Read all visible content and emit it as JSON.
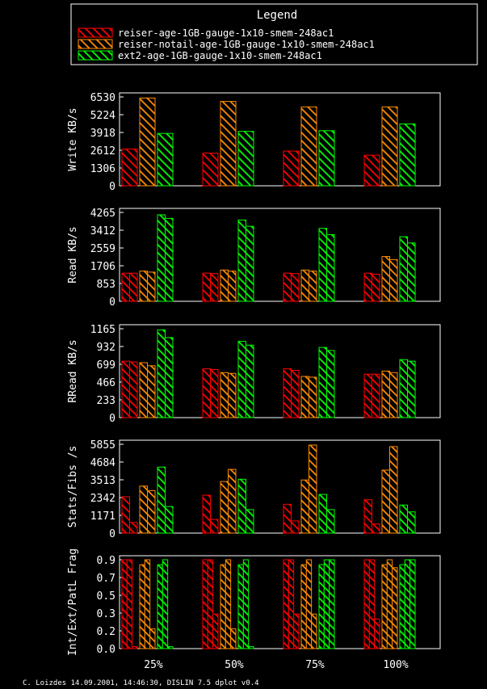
{
  "legend": {
    "title": "Legend",
    "entries": [
      {
        "label": "reiser-age-1GB-gauge-1x10-smem-248ac1",
        "color": "#ff0000"
      },
      {
        "label": "reiser-notail-age-1GB-gauge-1x10-smem-248ac1",
        "color": "#ff8c00"
      },
      {
        "label": "ext2-age-1GB-gauge-1x10-smem-248ac1",
        "color": "#00ff00"
      }
    ]
  },
  "footer": "C. Loizdes 14.09.2001, 14:46:30, DISLIN 7.5 dplot v0.4",
  "chart_data": [
    {
      "type": "bar",
      "ylabel": "Write KB/s",
      "ylim": [
        0,
        6530
      ],
      "yticks": [
        "0",
        "1306",
        "2612",
        "3918",
        "5224",
        "6530"
      ],
      "categories": [
        "25%",
        "50%",
        "75%",
        "100%"
      ],
      "series": [
        {
          "name": "reiser-age-1GB-gauge-1x10-smem-248ac1",
          "values": [
            [
              2700
            ],
            [
              2400
            ],
            [
              2550
            ],
            [
              2250
            ]
          ]
        },
        {
          "name": "reiser-notail-age-1GB-gauge-1x10-smem-248ac1",
          "values": [
            [
              6450
            ],
            [
              6200
            ],
            [
              5800
            ],
            [
              5800
            ]
          ]
        },
        {
          "name": "ext2-age-1GB-gauge-1x10-smem-248ac1",
          "values": [
            [
              3850
            ],
            [
              4000
            ],
            [
              4050
            ],
            [
              4550
            ]
          ]
        }
      ]
    },
    {
      "type": "bar",
      "ylabel": "Read KB/s",
      "ylim": [
        0,
        4265
      ],
      "yticks": [
        "0",
        "853",
        "1706",
        "2559",
        "3412",
        "4265"
      ],
      "categories": [
        "25%",
        "50%",
        "75%",
        "100%"
      ],
      "series": [
        {
          "name": "reiser-age-1GB-gauge-1x10-smem-248ac1",
          "values": [
            [
              1350,
              1350
            ],
            [
              1350,
              1330
            ],
            [
              1350,
              1330
            ],
            [
              1350,
              1300
            ]
          ]
        },
        {
          "name": "reiser-notail-age-1GB-gauge-1x10-smem-248ac1",
          "values": [
            [
              1450,
              1400
            ],
            [
              1500,
              1450
            ],
            [
              1500,
              1450
            ],
            [
              2150,
              2000
            ]
          ]
        },
        {
          "name": "ext2-age-1GB-gauge-1x10-smem-248ac1",
          "values": [
            [
              4150,
              3980
            ],
            [
              3900,
              3600
            ],
            [
              3500,
              3200
            ],
            [
              3100,
              2800
            ]
          ]
        }
      ]
    },
    {
      "type": "bar",
      "ylabel": "RRead KB/s",
      "ylim": [
        0,
        1165
      ],
      "yticks": [
        "0",
        "233",
        "466",
        "699",
        "932",
        "1165"
      ],
      "categories": [
        "25%",
        "50%",
        "75%",
        "100%"
      ],
      "series": [
        {
          "name": "reiser-age-1GB-gauge-1x10-smem-248ac1",
          "values": [
            [
              740,
              730
            ],
            [
              640,
              630
            ],
            [
              640,
              620
            ],
            [
              570,
              570
            ]
          ]
        },
        {
          "name": "reiser-notail-age-1GB-gauge-1x10-smem-248ac1",
          "values": [
            [
              720,
              680
            ],
            [
              590,
              580
            ],
            [
              540,
              530
            ],
            [
              610,
              590
            ]
          ]
        },
        {
          "name": "ext2-age-1GB-gauge-1x10-smem-248ac1",
          "values": [
            [
              1150,
              1050
            ],
            [
              1000,
              950
            ],
            [
              920,
              880
            ],
            [
              760,
              740
            ]
          ]
        }
      ]
    },
    {
      "type": "bar",
      "ylabel": "Stats/Fibs /s",
      "ylim": [
        0,
        5855
      ],
      "yticks": [
        "0",
        "1171",
        "2342",
        "3513",
        "4684",
        "5855"
      ],
      "categories": [
        "25%",
        "50%",
        "75%",
        "100%"
      ],
      "series": [
        {
          "name": "reiser-age-1GB-gauge-1x10-smem-248ac1",
          "values": [
            [
              2400,
              700
            ],
            [
              2500,
              900
            ],
            [
              1900,
              800
            ],
            [
              2200,
              600
            ]
          ]
        },
        {
          "name": "reiser-notail-age-1GB-gauge-1x10-smem-248ac1",
          "values": [
            [
              3100,
              2800
            ],
            [
              3400,
              4200
            ],
            [
              3500,
              5800
            ],
            [
              4150,
              5700
            ]
          ]
        },
        {
          "name": "ext2-age-1GB-gauge-1x10-smem-248ac1",
          "values": [
            [
              4350,
              1750
            ],
            [
              3550,
              1550
            ],
            [
              2550,
              1550
            ],
            [
              1850,
              1400
            ]
          ]
        }
      ]
    },
    {
      "type": "bar",
      "ylabel": "Int/Ext/PatL Frag",
      "ylim": [
        0,
        0.9
      ],
      "yticks": [
        "0.0",
        "0.2",
        "0.3",
        "0.5",
        "0.7",
        "0.9"
      ],
      "categories": [
        "25%",
        "50%",
        "75%",
        "100%"
      ],
      "series": [
        {
          "name": "reiser-age-1GB-gauge-1x10-smem-248ac1",
          "values": [
            [
              0.9,
              0.9,
              0.02
            ],
            [
              0.9,
              0.9,
              0.35
            ],
            [
              0.9,
              0.9,
              0.35
            ],
            [
              0.9,
              0.9,
              0.3
            ]
          ]
        },
        {
          "name": "reiser-notail-age-1GB-gauge-1x10-smem-248ac1",
          "values": [
            [
              0.85,
              0.9,
              0.2
            ],
            [
              0.85,
              0.9,
              0.2
            ],
            [
              0.85,
              0.9,
              0.35
            ],
            [
              0.85,
              0.9,
              0.82
            ]
          ]
        },
        {
          "name": "ext2-age-1GB-gauge-1x10-smem-248ac1",
          "values": [
            [
              0.85,
              0.9,
              0.02
            ],
            [
              0.85,
              0.9,
              0.02
            ],
            [
              0.85,
              0.9,
              0.9
            ],
            [
              0.85,
              0.9,
              0.9
            ]
          ]
        }
      ]
    }
  ]
}
